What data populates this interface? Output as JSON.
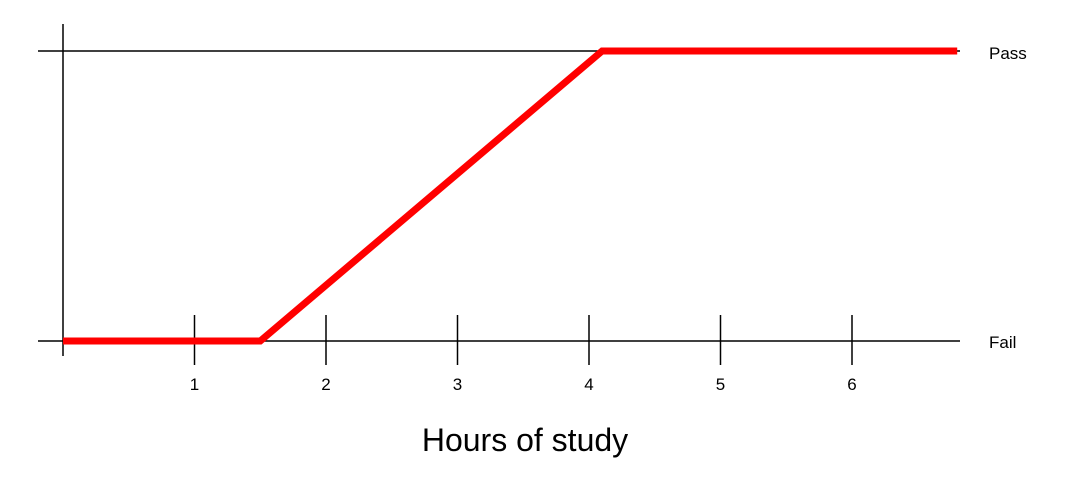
{
  "chart_data": {
    "type": "line",
    "title": "",
    "xlabel": "Hours of study",
    "ylabel": "",
    "x_ticks": [
      1,
      2,
      3,
      4,
      5,
      6
    ],
    "x_tick_labels": [
      "1",
      "2",
      "3",
      "4",
      "5",
      "6"
    ],
    "y_levels": [
      "Fail",
      "Pass"
    ],
    "xlim": [
      0,
      6.8
    ],
    "ylim": [
      0,
      1
    ],
    "grid": false,
    "series": [
      {
        "points": [
          {
            "x": 0,
            "y": 0
          },
          {
            "x": 1.5,
            "y": 0
          },
          {
            "x": 4.1,
            "y": 1
          },
          {
            "x": 6.8,
            "y": 1
          }
        ],
        "color": "#ff0000"
      }
    ]
  }
}
